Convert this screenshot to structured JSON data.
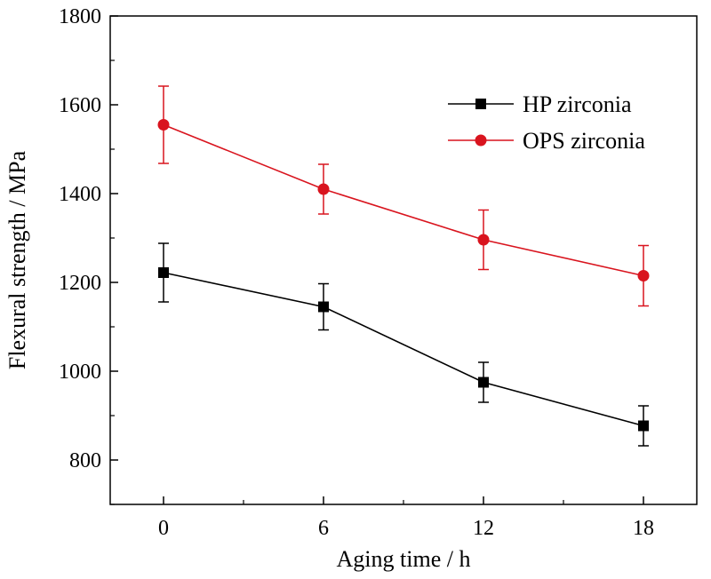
{
  "chart_data": {
    "type": "line",
    "title": "",
    "xlabel": "Aging time / h",
    "ylabel": "Flexural strength / MPa",
    "x": [
      0,
      6,
      12,
      18
    ],
    "xticks": [
      "0",
      "6",
      "12",
      "18"
    ],
    "yticks": [
      "800",
      "1000",
      "1200",
      "1400",
      "1600",
      "1800"
    ],
    "xlim": [
      -2,
      20
    ],
    "ylim": [
      700,
      1800
    ],
    "grid": false,
    "legend_position": "top-right",
    "series": [
      {
        "name": "HP zirconia",
        "color": "#000000",
        "marker": "square",
        "values": [
          1222,
          1145,
          975,
          877
        ],
        "error": [
          66,
          52,
          45,
          45
        ]
      },
      {
        "name": "OPS zirconia",
        "color": "#d9141e",
        "marker": "circle",
        "values": [
          1555,
          1410,
          1296,
          1215
        ],
        "error": [
          87,
          56,
          67,
          68
        ]
      }
    ]
  }
}
